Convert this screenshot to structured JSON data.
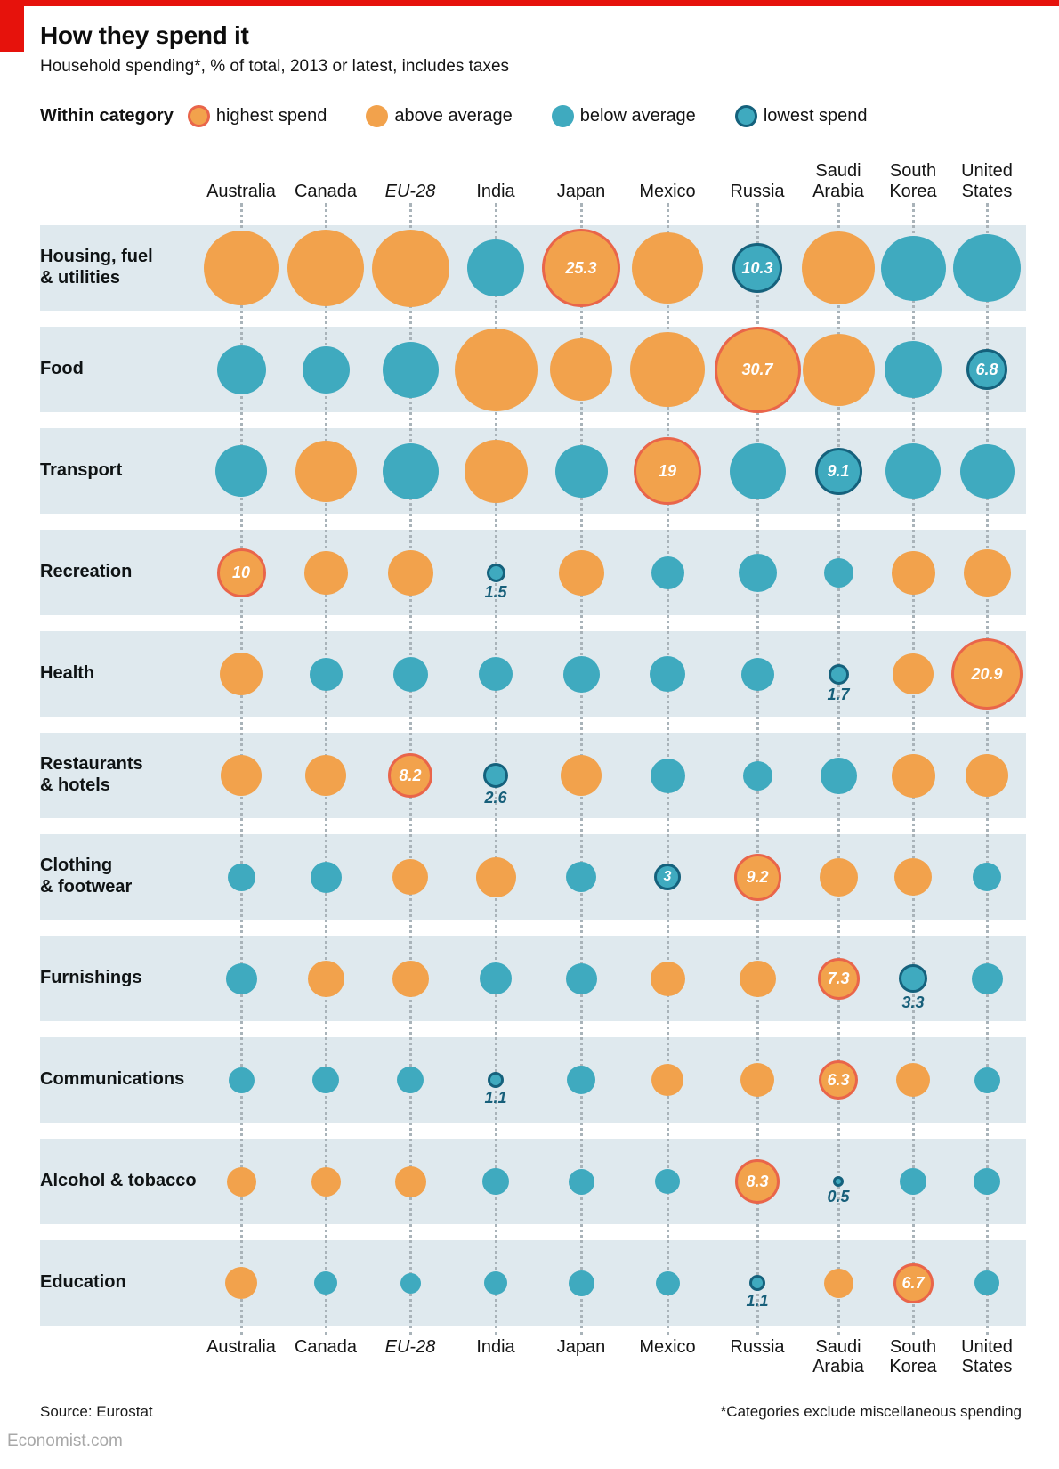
{
  "header": {
    "title": "How they spend it",
    "subtitle": "Household spending*, % of total, 2013 or latest, includes taxes"
  },
  "legend": {
    "label": "Within category",
    "items": [
      {
        "key": "highest",
        "label": "highest spend"
      },
      {
        "key": "above",
        "label": "above average"
      },
      {
        "key": "below",
        "label": "below average"
      },
      {
        "key": "lowest",
        "label": "lowest spend"
      }
    ]
  },
  "colors": {
    "economist_red": "#e6120c",
    "orange_fill": "#f2a24c",
    "highest_ring": "#e9654a",
    "teal_fill": "#3faabf",
    "lowest_ring": "#15617c",
    "band_bg": "#dfe9ee",
    "dotted_line": "#a9b3b9",
    "value_label_dark": "#175f7a",
    "value_label_light": "#ffffff"
  },
  "chart_data": {
    "type": "bubble-matrix",
    "unit": "% of total household spending",
    "note": "Printed values appear only on outlined (highest/lowest) bubbles; remaining values estimated from bubble area",
    "columns": [
      {
        "label": "Australia"
      },
      {
        "label": "Canada"
      },
      {
        "label": "EU-28",
        "italic": true
      },
      {
        "label": "India"
      },
      {
        "label": "Japan"
      },
      {
        "label": "Mexico"
      },
      {
        "label": "Russia"
      },
      {
        "label": "Saudi Arabia"
      },
      {
        "label": "South Korea"
      },
      {
        "label": "United States"
      }
    ],
    "rows": [
      {
        "label": "Housing, fuel\n& utilities",
        "cells": [
          {
            "v": 23,
            "cat": "above"
          },
          {
            "v": 24,
            "cat": "above"
          },
          {
            "v": 24.5,
            "cat": "above"
          },
          {
            "v": 13.5,
            "cat": "below"
          },
          {
            "v": 25.3,
            "cat": "highest",
            "show": "25.3",
            "pos": "inside"
          },
          {
            "v": 21,
            "cat": "above"
          },
          {
            "v": 10.3,
            "cat": "lowest",
            "show": "10.3",
            "pos": "inside"
          },
          {
            "v": 22,
            "cat": "above"
          },
          {
            "v": 17.5,
            "cat": "below"
          },
          {
            "v": 19,
            "cat": "below"
          }
        ]
      },
      {
        "label": "Food",
        "cells": [
          {
            "v": 10,
            "cat": "below"
          },
          {
            "v": 9.3,
            "cat": "below"
          },
          {
            "v": 13,
            "cat": "below"
          },
          {
            "v": 28.5,
            "cat": "above"
          },
          {
            "v": 16,
            "cat": "above"
          },
          {
            "v": 23,
            "cat": "above"
          },
          {
            "v": 30.7,
            "cat": "highest",
            "show": "30.7",
            "pos": "inside"
          },
          {
            "v": 21.5,
            "cat": "above"
          },
          {
            "v": 13.5,
            "cat": "below"
          },
          {
            "v": 6.8,
            "cat": "lowest",
            "show": "6.8",
            "pos": "inside"
          }
        ]
      },
      {
        "label": "Transport",
        "cells": [
          {
            "v": 11,
            "cat": "below"
          },
          {
            "v": 15.5,
            "cat": "above"
          },
          {
            "v": 13,
            "cat": "below"
          },
          {
            "v": 16.5,
            "cat": "above"
          },
          {
            "v": 11.5,
            "cat": "below"
          },
          {
            "v": 19,
            "cat": "highest",
            "show": "19",
            "pos": "inside"
          },
          {
            "v": 13,
            "cat": "below"
          },
          {
            "v": 9.1,
            "cat": "lowest",
            "show": "9.1",
            "pos": "inside"
          },
          {
            "v": 12.5,
            "cat": "below"
          },
          {
            "v": 12,
            "cat": "below"
          }
        ]
      },
      {
        "label": "Recreation",
        "cells": [
          {
            "v": 10,
            "cat": "highest",
            "show": "10",
            "pos": "inside"
          },
          {
            "v": 8,
            "cat": "above"
          },
          {
            "v": 8.5,
            "cat": "above"
          },
          {
            "v": 1.5,
            "cat": "lowest",
            "show": "1.5",
            "pos": "below"
          },
          {
            "v": 8.5,
            "cat": "above"
          },
          {
            "v": 4.5,
            "cat": "below"
          },
          {
            "v": 6,
            "cat": "below"
          },
          {
            "v": 3.5,
            "cat": "below"
          },
          {
            "v": 8,
            "cat": "above"
          },
          {
            "v": 9,
            "cat": "above"
          }
        ]
      },
      {
        "label": "Health",
        "cells": [
          {
            "v": 7.5,
            "cat": "above"
          },
          {
            "v": 4.5,
            "cat": "below"
          },
          {
            "v": 5,
            "cat": "below"
          },
          {
            "v": 4.8,
            "cat": "below"
          },
          {
            "v": 5.5,
            "cat": "below"
          },
          {
            "v": 5.3,
            "cat": "below"
          },
          {
            "v": 4.5,
            "cat": "below"
          },
          {
            "v": 1.7,
            "cat": "lowest",
            "show": "1.7",
            "pos": "below"
          },
          {
            "v": 6.8,
            "cat": "above"
          },
          {
            "v": 20.9,
            "cat": "highest",
            "show": "20.9",
            "pos": "inside"
          }
        ]
      },
      {
        "label": "Restaurants\n& hotels",
        "cells": [
          {
            "v": 7,
            "cat": "above"
          },
          {
            "v": 7,
            "cat": "above"
          },
          {
            "v": 8.2,
            "cat": "highest",
            "show": "8.2",
            "pos": "inside"
          },
          {
            "v": 2.6,
            "cat": "lowest",
            "show": "2.6",
            "pos": "below"
          },
          {
            "v": 7,
            "cat": "above"
          },
          {
            "v": 5,
            "cat": "below"
          },
          {
            "v": 3.5,
            "cat": "below"
          },
          {
            "v": 5.5,
            "cat": "below"
          },
          {
            "v": 7.8,
            "cat": "above"
          },
          {
            "v": 7.5,
            "cat": "above"
          }
        ]
      },
      {
        "label": "Clothing\n& footwear",
        "cells": [
          {
            "v": 3.2,
            "cat": "below"
          },
          {
            "v": 4,
            "cat": "below"
          },
          {
            "v": 5.3,
            "cat": "above"
          },
          {
            "v": 6.5,
            "cat": "above"
          },
          {
            "v": 3.8,
            "cat": "below"
          },
          {
            "v": 3,
            "cat": "lowest",
            "show": "3",
            "pos": "inside"
          },
          {
            "v": 9.2,
            "cat": "highest",
            "show": "9.2",
            "pos": "inside"
          },
          {
            "v": 6,
            "cat": "above"
          },
          {
            "v": 5.8,
            "cat": "above"
          },
          {
            "v": 3.4,
            "cat": "below"
          }
        ]
      },
      {
        "label": "Furnishings",
        "cells": [
          {
            "v": 4,
            "cat": "below"
          },
          {
            "v": 5.5,
            "cat": "above"
          },
          {
            "v": 5.5,
            "cat": "above"
          },
          {
            "v": 4.3,
            "cat": "below"
          },
          {
            "v": 4,
            "cat": "below"
          },
          {
            "v": 5,
            "cat": "above"
          },
          {
            "v": 5.5,
            "cat": "above"
          },
          {
            "v": 7.3,
            "cat": "highest",
            "show": "7.3",
            "pos": "inside"
          },
          {
            "v": 3.3,
            "cat": "lowest",
            "show": "3.3",
            "pos": "below"
          },
          {
            "v": 4,
            "cat": "below"
          }
        ]
      },
      {
        "label": "Communications",
        "cells": [
          {
            "v": 2.7,
            "cat": "below"
          },
          {
            "v": 3,
            "cat": "below"
          },
          {
            "v": 3,
            "cat": "below"
          },
          {
            "v": 1.1,
            "cat": "lowest",
            "show": "1.1",
            "pos": "below"
          },
          {
            "v": 3.3,
            "cat": "below"
          },
          {
            "v": 4.3,
            "cat": "above"
          },
          {
            "v": 4.7,
            "cat": "above"
          },
          {
            "v": 6.3,
            "cat": "highest",
            "show": "6.3",
            "pos": "inside"
          },
          {
            "v": 4.8,
            "cat": "above"
          },
          {
            "v": 2.7,
            "cat": "below"
          }
        ]
      },
      {
        "label": "Alcohol & tobacco",
        "cells": [
          {
            "v": 3.6,
            "cat": "above"
          },
          {
            "v": 3.6,
            "cat": "above"
          },
          {
            "v": 4,
            "cat": "above"
          },
          {
            "v": 3,
            "cat": "below"
          },
          {
            "v": 2.7,
            "cat": "below"
          },
          {
            "v": 2.5,
            "cat": "below"
          },
          {
            "v": 8.3,
            "cat": "highest",
            "show": "8.3",
            "pos": "inside"
          },
          {
            "v": 0.5,
            "cat": "lowest",
            "show": "0.5",
            "pos": "below"
          },
          {
            "v": 3,
            "cat": "below"
          },
          {
            "v": 3,
            "cat": "below"
          }
        ]
      },
      {
        "label": "Education",
        "cells": [
          {
            "v": 4.3,
            "cat": "above"
          },
          {
            "v": 2.2,
            "cat": "below"
          },
          {
            "v": 1.7,
            "cat": "below"
          },
          {
            "v": 2.2,
            "cat": "below"
          },
          {
            "v": 2.8,
            "cat": "below"
          },
          {
            "v": 2.3,
            "cat": "below"
          },
          {
            "v": 1.1,
            "cat": "lowest",
            "show": "1.1",
            "pos": "below"
          },
          {
            "v": 3.5,
            "cat": "above"
          },
          {
            "v": 6.7,
            "cat": "highest",
            "show": "6.7",
            "pos": "inside"
          },
          {
            "v": 2.5,
            "cat": "below"
          }
        ]
      }
    ]
  },
  "footer": {
    "source": "Source: Eurostat",
    "footnote": "*Categories exclude miscellaneous spending",
    "site": "Economist.com"
  }
}
